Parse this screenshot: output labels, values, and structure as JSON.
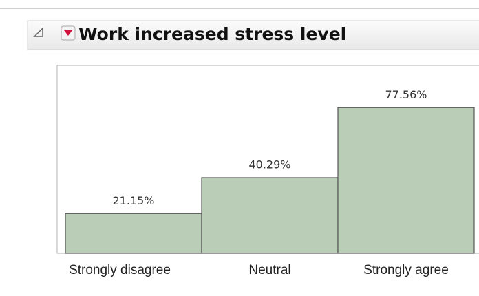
{
  "chart_data": {
    "type": "bar",
    "title": "Work increased stress level",
    "categories": [
      "Strongly disagree",
      "Neutral",
      "Strongly agree"
    ],
    "values": [
      21.15,
      40.29,
      77.56
    ],
    "value_labels": [
      "21.15%",
      "40.29%",
      "77.56%"
    ],
    "color": "#b9cdb7",
    "ylim": [
      0,
      100
    ]
  }
}
